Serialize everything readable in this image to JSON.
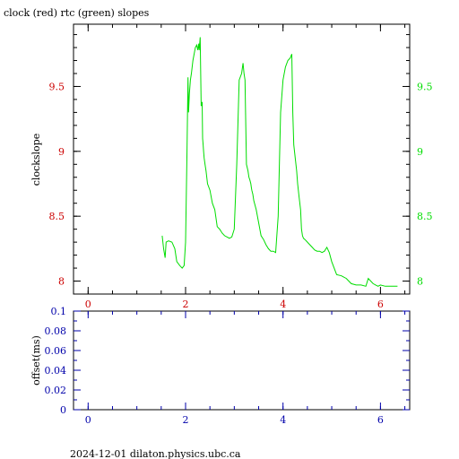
{
  "title": "clock (red) rtc (green) slopes",
  "footer": "2024-12-01 dilaton.physics.ubc.ca",
  "colors": {
    "axis": "#000000",
    "red_ticks": "#cc0000",
    "green_series": "#00dd00",
    "blue_ticks": "#0000aa"
  },
  "chart_data": [
    {
      "type": "line",
      "title": "clock (red) rtc (green) slopes",
      "xlabel": "",
      "ylabel": "clockslope",
      "xlim": [
        -0.3,
        6.6
      ],
      "ylim": [
        7.9,
        9.98
      ],
      "x_ticks": [
        0,
        2,
        4,
        6
      ],
      "y_ticks_left": [
        8,
        8.5,
        9,
        9.5
      ],
      "y_ticks_right": [
        8,
        8.5,
        9,
        9.5
      ],
      "y_tick_labels_left": [
        "8",
        "8.5",
        "9",
        "9.5"
      ],
      "y_tick_labels_right": [
        "8",
        "8.5",
        "9",
        "9.5"
      ],
      "grid": false,
      "series": [
        {
          "color": "#00dd00",
          "x": [
            1.52,
            1.55,
            1.58,
            1.6,
            1.65,
            1.72,
            1.78,
            1.82,
            1.88,
            1.93,
            1.97,
            2.0,
            2.03,
            2.05,
            2.06,
            2.08,
            2.1,
            2.12,
            2.15,
            2.2,
            2.23,
            2.25,
            2.27,
            2.28,
            2.3,
            2.32,
            2.34,
            2.35,
            2.36,
            2.37,
            2.38,
            2.4,
            2.42,
            2.45,
            2.5,
            2.55,
            2.6,
            2.65,
            2.7,
            2.75,
            2.8,
            2.85,
            2.9,
            2.95,
            3.0,
            3.05,
            3.1,
            3.15,
            3.18,
            3.2,
            3.22,
            3.25,
            3.28,
            3.3,
            3.32,
            3.34,
            3.35,
            3.36,
            3.38,
            3.4,
            3.45,
            3.5,
            3.55,
            3.6,
            3.65,
            3.7,
            3.75,
            3.8,
            3.85,
            3.9,
            3.95,
            4.0,
            4.05,
            4.1,
            4.15,
            4.18,
            4.2,
            4.22,
            4.25,
            4.28,
            4.3,
            4.33,
            4.36,
            4.38,
            4.4,
            4.42,
            4.45,
            4.5,
            4.55,
            4.6,
            4.65,
            4.7,
            4.75,
            4.8,
            4.85,
            4.9,
            4.95,
            5.0,
            5.1,
            5.2,
            5.3,
            5.4,
            5.5,
            5.6,
            5.7,
            5.75,
            5.8,
            5.85,
            5.9,
            5.95,
            6.0,
            6.1,
            6.2,
            6.3,
            6.35
          ],
          "values": [
            8.35,
            8.25,
            8.18,
            8.3,
            8.31,
            8.3,
            8.25,
            8.15,
            8.12,
            8.1,
            8.12,
            8.3,
            9.0,
            9.57,
            9.3,
            9.45,
            9.55,
            9.6,
            9.7,
            9.8,
            9.82,
            9.78,
            9.83,
            9.78,
            9.88,
            9.35,
            9.38,
            9.1,
            9.05,
            9.0,
            8.95,
            8.9,
            8.85,
            8.75,
            8.7,
            8.6,
            8.55,
            8.42,
            8.4,
            8.37,
            8.35,
            8.34,
            8.33,
            8.34,
            8.4,
            8.9,
            9.55,
            9.6,
            9.68,
            9.6,
            9.55,
            8.9,
            8.85,
            8.8,
            8.78,
            8.75,
            8.72,
            8.7,
            8.67,
            8.62,
            8.55,
            8.45,
            8.35,
            8.32,
            8.28,
            8.25,
            8.23,
            8.23,
            8.22,
            8.5,
            9.3,
            9.55,
            9.65,
            9.7,
            9.72,
            9.75,
            9.3,
            9.05,
            8.95,
            8.85,
            8.75,
            8.65,
            8.55,
            8.4,
            8.35,
            8.33,
            8.32,
            8.3,
            8.28,
            8.26,
            8.24,
            8.23,
            8.23,
            8.22,
            8.23,
            8.26,
            8.22,
            8.15,
            8.05,
            8.04,
            8.02,
            7.98,
            7.97,
            7.97,
            7.96,
            8.02,
            8.0,
            7.98,
            7.97,
            7.96,
            7.97,
            7.96,
            7.96,
            7.96,
            7.96
          ]
        }
      ]
    },
    {
      "type": "line",
      "xlabel": "",
      "ylabel": "offset(ms)",
      "xlim": [
        -0.3,
        6.6
      ],
      "ylim": [
        0,
        0.1
      ],
      "x_ticks": [
        0,
        2,
        4,
        6
      ],
      "y_ticks": [
        0,
        0.02,
        0.04,
        0.06,
        0.08,
        0.1
      ],
      "y_tick_labels": [
        "0",
        "0.02",
        "0.04",
        "0.06",
        "0.08",
        "0.1"
      ],
      "grid": false,
      "series": []
    }
  ]
}
